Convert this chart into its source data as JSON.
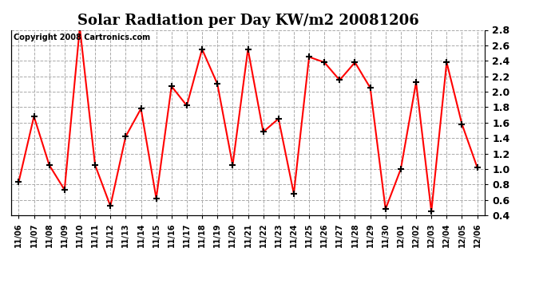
{
  "title": "Solar Radiation per Day KW/m2 20081206",
  "copyright": "Copyright 2008 Cartronics.com",
  "labels": [
    "11/06",
    "11/07",
    "11/08",
    "11/09",
    "11/10",
    "11/11",
    "11/12",
    "11/13",
    "11/14",
    "11/15",
    "11/16",
    "11/17",
    "11/18",
    "11/19",
    "11/20",
    "11/21",
    "11/22",
    "11/23",
    "11/24",
    "11/25",
    "11/26",
    "11/27",
    "11/28",
    "11/29",
    "11/30",
    "12/01",
    "12/02",
    "12/03",
    "12/04",
    "12/05",
    "12/06"
  ],
  "values": [
    0.83,
    1.68,
    1.05,
    0.73,
    2.83,
    1.05,
    0.52,
    1.42,
    1.78,
    0.62,
    2.07,
    1.82,
    2.55,
    2.1,
    1.05,
    2.55,
    1.48,
    1.65,
    0.68,
    2.45,
    2.38,
    2.15,
    2.38,
    2.05,
    0.48,
    1.0,
    2.12,
    0.45,
    2.38,
    1.58,
    1.02
  ],
  "line_color": "#ff0000",
  "marker": "+",
  "marker_color": "#000000",
  "marker_size": 6,
  "line_width": 1.5,
  "ylim": [
    0.4,
    2.8
  ],
  "yticks": [
    0.4,
    0.6,
    0.8,
    1.0,
    1.2,
    1.4,
    1.6,
    1.8,
    2.0,
    2.2,
    2.4,
    2.6,
    2.8
  ],
  "grid_color": "#aaaaaa",
  "grid_style": "--",
  "bg_color": "#ffffff",
  "title_fontsize": 13,
  "copyright_fontsize": 7
}
